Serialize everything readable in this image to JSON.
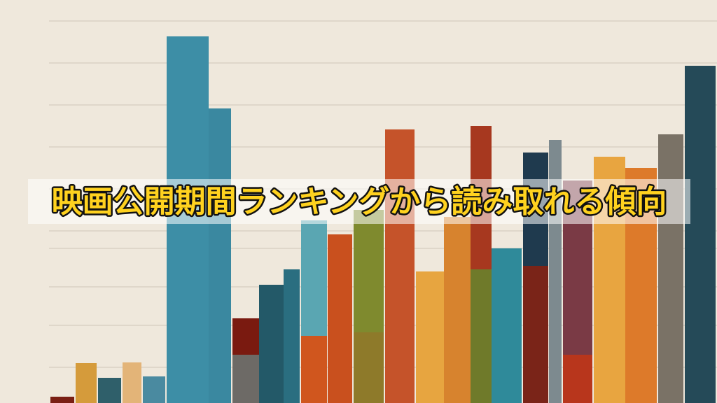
{
  "header": {
    "title": "映画公開期間ランキングから読み取れる傾向"
  }
}
